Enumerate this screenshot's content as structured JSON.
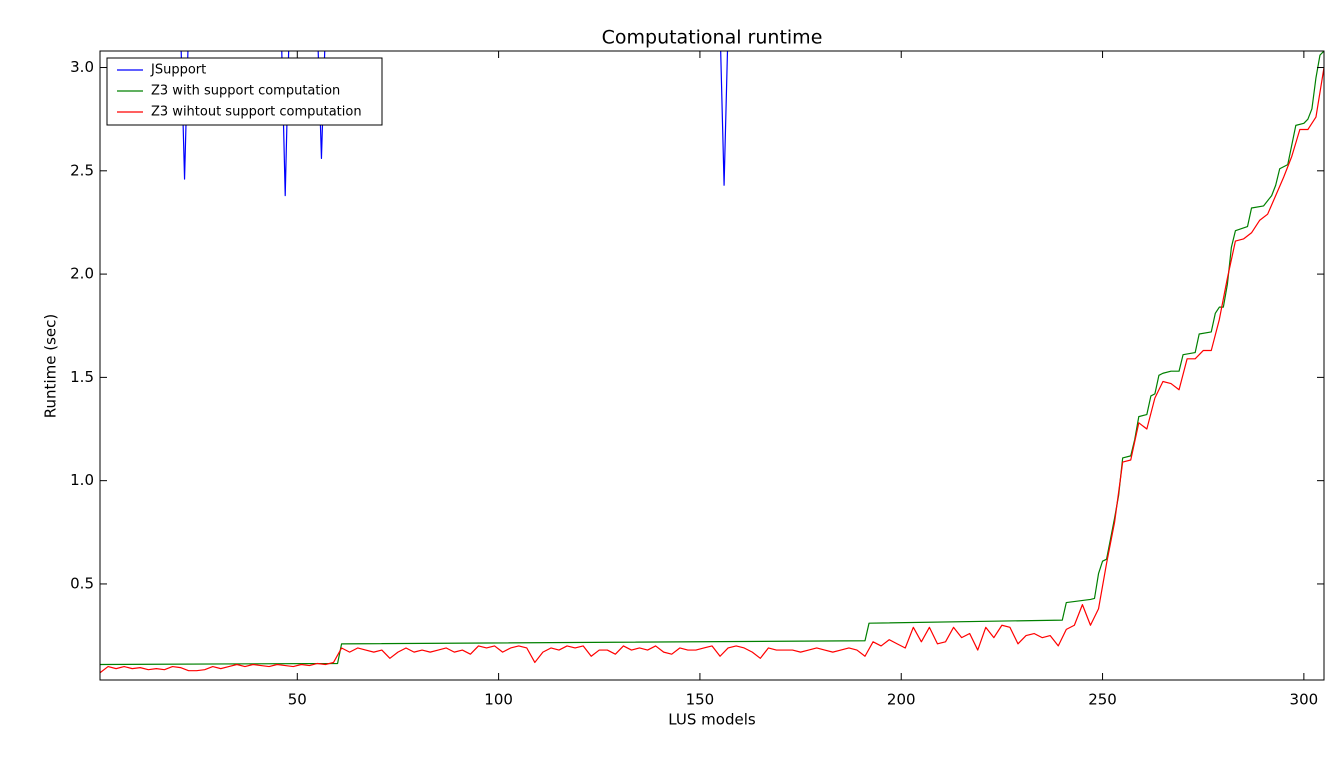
{
  "chart_data": {
    "type": "line",
    "title": "Computational runtime",
    "x_label": "LUS models",
    "y_label": "Runtime (sec)",
    "xlim": [
      1,
      305
    ],
    "ylim": [
      0.035,
      3.08
    ],
    "xticks": [
      50,
      100,
      150,
      200,
      250,
      300
    ],
    "yticks": [
      0.5,
      {
        "value": 1,
        "label": "1.0"
      },
      1.5,
      {
        "value": 2,
        "label": "2.0"
      },
      2.5,
      {
        "value": 3,
        "label": "3.0"
      }
    ],
    "grid": false,
    "legend": "upper left",
    "series": [
      {
        "name": "JSupport",
        "color": "#0000ff",
        "x": [
          1,
          21,
          22,
          23,
          46,
          47,
          48,
          55,
          56,
          57,
          155,
          156,
          157,
          305
        ],
        "values": [
          3.2,
          3.2,
          2.46,
          3.2,
          3.2,
          2.38,
          3.2,
          3.2,
          2.56,
          3.2,
          3.2,
          2.43,
          3.2,
          3.2
        ]
      },
      {
        "name": "Z3 with support computation",
        "color": "#008000",
        "x": [
          1,
          60,
          61,
          191,
          192,
          240,
          241,
          247,
          248,
          249,
          250,
          251,
          252,
          253,
          254,
          255,
          257,
          258,
          259,
          261,
          262,
          263,
          264,
          265,
          267,
          269,
          270,
          273,
          274,
          277,
          278,
          279,
          280,
          281,
          282,
          283,
          286,
          287,
          290,
          292,
          293,
          294,
          296,
          298,
          300,
          301,
          302,
          303,
          304,
          305
        ],
        "values": [
          0.11,
          0.115,
          0.21,
          0.225,
          0.31,
          0.325,
          0.41,
          0.425,
          0.43,
          0.55,
          0.61,
          0.62,
          0.72,
          0.82,
          0.93,
          1.11,
          1.12,
          1.2,
          1.31,
          1.32,
          1.41,
          1.42,
          1.51,
          1.52,
          1.53,
          1.53,
          1.61,
          1.62,
          1.71,
          1.72,
          1.81,
          1.84,
          1.84,
          1.95,
          2.13,
          2.21,
          2.23,
          2.32,
          2.33,
          2.38,
          2.43,
          2.51,
          2.53,
          2.72,
          2.73,
          2.75,
          2.8,
          2.95,
          3.06,
          3.08
        ]
      },
      {
        "name": "Z3 wihtout support computation",
        "color": "#ff0000",
        "x": [
          1,
          3,
          5,
          7,
          9,
          11,
          13,
          15,
          17,
          19,
          21,
          23,
          25,
          27,
          29,
          31,
          33,
          35,
          37,
          39,
          41,
          43,
          45,
          47,
          49,
          51,
          53,
          55,
          57,
          59,
          61,
          63,
          65,
          67,
          69,
          71,
          73,
          75,
          77,
          79,
          81,
          83,
          85,
          87,
          89,
          91,
          93,
          95,
          97,
          99,
          101,
          103,
          105,
          107,
          109,
          111,
          113,
          115,
          117,
          119,
          121,
          123,
          125,
          127,
          129,
          131,
          133,
          135,
          137,
          139,
          141,
          143,
          145,
          147,
          149,
          151,
          153,
          155,
          157,
          159,
          161,
          163,
          165,
          167,
          169,
          171,
          173,
          175,
          177,
          179,
          181,
          183,
          185,
          187,
          189,
          191,
          193,
          195,
          197,
          199,
          201,
          203,
          205,
          207,
          209,
          211,
          213,
          215,
          217,
          219,
          221,
          223,
          225,
          227,
          229,
          231,
          233,
          235,
          237,
          239,
          241,
          243,
          245,
          247,
          249,
          251,
          253,
          255,
          257,
          259,
          261,
          263,
          265,
          267,
          269,
          271,
          273,
          275,
          277,
          279,
          281,
          283,
          285,
          287,
          289,
          291,
          293,
          295,
          297,
          299,
          301,
          303,
          305
        ],
        "values": [
          0.07,
          0.1,
          0.09,
          0.1,
          0.09,
          0.095,
          0.085,
          0.09,
          0.085,
          0.1,
          0.095,
          0.08,
          0.08,
          0.085,
          0.1,
          0.09,
          0.1,
          0.11,
          0.1,
          0.11,
          0.105,
          0.1,
          0.11,
          0.105,
          0.1,
          0.11,
          0.105,
          0.115,
          0.11,
          0.12,
          0.19,
          0.17,
          0.19,
          0.18,
          0.17,
          0.18,
          0.14,
          0.17,
          0.19,
          0.17,
          0.18,
          0.17,
          0.18,
          0.19,
          0.17,
          0.18,
          0.16,
          0.2,
          0.19,
          0.2,
          0.17,
          0.19,
          0.2,
          0.19,
          0.12,
          0.17,
          0.19,
          0.18,
          0.2,
          0.19,
          0.2,
          0.15,
          0.18,
          0.18,
          0.16,
          0.2,
          0.18,
          0.19,
          0.18,
          0.2,
          0.17,
          0.16,
          0.19,
          0.18,
          0.18,
          0.19,
          0.2,
          0.15,
          0.19,
          0.2,
          0.19,
          0.17,
          0.14,
          0.19,
          0.18,
          0.18,
          0.18,
          0.17,
          0.18,
          0.19,
          0.18,
          0.17,
          0.18,
          0.19,
          0.18,
          0.15,
          0.22,
          0.2,
          0.23,
          0.21,
          0.19,
          0.29,
          0.22,
          0.29,
          0.21,
          0.22,
          0.29,
          0.24,
          0.26,
          0.18,
          0.29,
          0.24,
          0.3,
          0.29,
          0.21,
          0.25,
          0.26,
          0.24,
          0.25,
          0.2,
          0.28,
          0.3,
          0.4,
          0.3,
          0.38,
          0.6,
          0.8,
          1.09,
          1.1,
          1.28,
          1.25,
          1.4,
          1.48,
          1.47,
          1.44,
          1.59,
          1.59,
          1.63,
          1.63,
          1.78,
          1.98,
          2.16,
          2.17,
          2.2,
          2.26,
          2.29,
          2.38,
          2.47,
          2.57,
          2.7,
          2.7,
          2.76,
          3.0
        ]
      }
    ]
  }
}
